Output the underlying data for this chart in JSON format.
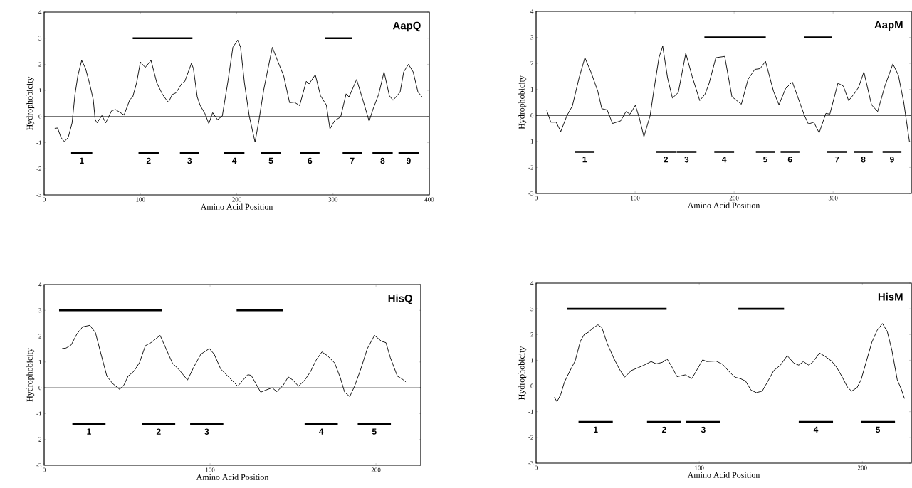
{
  "chart_data": [
    {
      "type": "line",
      "title": "AapQ",
      "xlabel": "Amino Acid Position",
      "ylabel": "Hydrophobicity",
      "xlim": [
        0,
        400
      ],
      "ylim": [
        -3,
        4
      ],
      "xticks": [
        0,
        100,
        200,
        300,
        400
      ],
      "yticks": [
        -3,
        -2,
        -1,
        0,
        1,
        2,
        3,
        4
      ],
      "ref_lines": [
        {
          "axis": "y",
          "value": 0,
          "color": "#000000"
        }
      ],
      "series": [
        {
          "color": "#000000",
          "x": [
            11,
            14,
            17.5,
            21,
            25,
            29,
            32,
            35,
            39,
            43,
            47,
            51,
            53,
            55,
            60,
            64,
            70,
            74,
            83,
            89,
            92,
            96,
            100,
            105,
            111,
            117,
            123,
            129,
            133,
            137,
            143,
            146,
            153,
            155,
            159,
            162,
            167,
            171,
            175,
            180,
            185,
            191,
            196,
            201,
            204,
            208,
            213,
            219,
            223,
            228,
            232,
            237,
            242.6,
            248.7,
            254.9,
            259.8,
            265.3,
            272.2,
            275.1,
            281.6,
            287,
            293.1,
            296.8,
            301.8,
            307.9,
            313.6,
            316.6,
            324.5,
            332.6,
            337.5,
            341.2,
            347.4,
            353,
            358.5,
            362.3,
            369.7,
            373.4,
            378.3,
            383.2,
            388.2,
            392.6
          ],
          "values": [
            -0.45,
            -0.44,
            -0.8,
            -0.96,
            -0.8,
            -0.25,
            0.84,
            1.56,
            2.15,
            1.84,
            1.29,
            0.65,
            -0.12,
            -0.24,
            0.04,
            -0.24,
            0.22,
            0.27,
            0.06,
            0.65,
            0.75,
            1.29,
            2.09,
            1.88,
            2.15,
            1.29,
            0.84,
            0.54,
            0.84,
            0.91,
            1.27,
            1.34,
            2.04,
            1.84,
            0.75,
            0.43,
            0.11,
            -0.27,
            0.15,
            -0.12,
            0.02,
            1.38,
            2.65,
            2.93,
            2.65,
            1.29,
            0.02,
            -0.98,
            -0.16,
            1.02,
            1.75,
            2.65,
            2.12,
            1.57,
            0.53,
            0.55,
            0.42,
            1.35,
            1.25,
            1.6,
            0.8,
            0.44,
            -0.47,
            -0.15,
            -0.02,
            0.87,
            0.75,
            1.42,
            0.44,
            -0.18,
            0.25,
            0.85,
            1.71,
            0.8,
            0.62,
            0.94,
            1.71,
            2.0,
            1.71,
            0.94,
            0.75
          ]
        },
        {
          "color": "#000000",
          "x": [
            92,
            154,
            null,
            292,
            320
          ],
          "values": [
            3,
            3,
            null,
            3,
            3
          ]
        },
        {
          "color": "#000000",
          "x": [
            28,
            50,
            null,
            98,
            119,
            null,
            141,
            161,
            null,
            187,
            208,
            null,
            225,
            246,
            null,
            266,
            286,
            null,
            310,
            330,
            null,
            341,
            362,
            null,
            368,
            389
          ],
          "values": [
            -1.4,
            -1.4,
            null,
            -1.4,
            -1.4,
            null,
            -1.4,
            -1.4,
            null,
            -1.4,
            -1.4,
            null,
            -1.4,
            -1.4,
            null,
            -1.4,
            -1.4,
            null,
            -1.4,
            -1.4,
            null,
            -1.4,
            -1.4,
            null,
            -1.4,
            -1.4
          ]
        }
      ],
      "annotations": [
        "1",
        "2",
        "3",
        "4",
        "5",
        "6",
        "7",
        "8",
        "9"
      ]
    },
    {
      "type": "line",
      "title": "AapM",
      "xlabel": "Amino Acid Position",
      "ylabel": "Hydrophobicity",
      "xlim": [
        0,
        379
      ],
      "ylim": [
        -3,
        4
      ],
      "xticks": [
        0,
        100,
        200,
        300
      ],
      "yticks": [
        -3,
        -2,
        -1,
        0,
        1,
        2,
        3,
        4
      ],
      "ref_lines": [
        {
          "axis": "y",
          "value": 0,
          "color": "#000000"
        }
      ],
      "series": [
        {
          "color": "#000000",
          "x": [
            10.8,
            14.9,
            20.3,
            24.9,
            31.2,
            36.6,
            43.4,
            49.3,
            55.6,
            62.3,
            66.4,
            71.8,
            77.2,
            85.4,
            90.8,
            94.9,
            100.3,
            104.3,
            108.9,
            115.2,
            119.2,
            124.1,
            127.9,
            132.8,
            137.7,
            143.6,
            151.2,
            157.7,
            165.3,
            170.7,
            174.8,
            181.6,
            190.5,
            197.8,
            207.3,
            214.1,
            220.9,
            226.3,
            231.7,
            239.8,
            245.3,
            252,
            258.8,
            264.2,
            271,
            275.1,
            280.5,
            285.9,
            292.7,
            296.7,
            304.9,
            310.3,
            315.7,
            321.1,
            325.7,
            331.1,
            338.8,
            345,
            352.3,
            360.4,
            365.9,
            371.3,
            377.2
          ],
          "values": [
            0.19,
            -0.26,
            -0.26,
            -0.62,
            0,
            0.36,
            1.44,
            2.22,
            1.65,
            0.93,
            0.26,
            0.21,
            -0.31,
            -0.21,
            0.15,
            0.05,
            0.39,
            -0.1,
            -0.82,
            0,
            1.03,
            2.22,
            2.66,
            1.44,
            0.67,
            0.88,
            2.39,
            1.49,
            0.57,
            0.82,
            1.24,
            2.22,
            2.27,
            0.72,
            0.43,
            1.39,
            1.77,
            1.8,
            2.08,
            0.93,
            0.41,
            1.03,
            1.29,
            0.72,
            0,
            -0.33,
            -0.26,
            -0.67,
            0.08,
            0.05,
            1.24,
            1.13,
            0.57,
            0.82,
            1.08,
            1.67,
            0.41,
            0.15,
            1.13,
            1.98,
            1.55,
            0.52,
            -1.03
          ]
        },
        {
          "color": "#000000",
          "x": [
            170,
            232,
            null,
            271,
            299
          ],
          "values": [
            3,
            3,
            null,
            3,
            3
          ]
        },
        {
          "color": "#000000",
          "x": [
            39,
            59,
            null,
            121,
            141,
            null,
            142,
            162,
            null,
            180,
            200,
            null,
            222,
            241,
            null,
            247,
            266,
            null,
            294,
            314,
            null,
            321,
            340,
            null,
            350,
            369
          ],
          "values": [
            -1.4,
            -1.4,
            null,
            -1.4,
            -1.4,
            null,
            -1.4,
            -1.4,
            null,
            -1.4,
            -1.4,
            null,
            -1.4,
            -1.4,
            null,
            -1.4,
            -1.4,
            null,
            -1.4,
            -1.4,
            null,
            -1.4,
            -1.4,
            null,
            -1.4,
            -1.4
          ]
        }
      ],
      "annotations": [
        "1",
        "2",
        "3",
        "4",
        "5",
        "6",
        "7",
        "8",
        "9"
      ]
    },
    {
      "type": "line",
      "title": "HisQ",
      "xlabel": "Amino Acid Position",
      "ylabel": "Hydrophobicity",
      "xlim": [
        0,
        227
      ],
      "ylim": [
        -3,
        4
      ],
      "xticks": [
        0,
        100,
        200
      ],
      "yticks": [
        -3,
        -2,
        -1,
        0,
        1,
        2,
        3,
        4
      ],
      "ref_lines": [
        {
          "axis": "y",
          "value": 0,
          "color": "#000000"
        }
      ],
      "series": [
        {
          "color": "#000000",
          "x": [
            10.8,
            13.2,
            16.3,
            19.7,
            23.2,
            27.5,
            30.9,
            34.3,
            37.8,
            41.2,
            45.5,
            48.1,
            50.6,
            54.1,
            57.5,
            61,
            64.4,
            69.9,
            73,
            77.3,
            81.6,
            86.4,
            90.1,
            94.4,
            99.6,
            102.5,
            106.4,
            110.7,
            116.7,
            122.7,
            124.8,
            130.5,
            134.8,
            137.4,
            140.3,
            144.2,
            147.1,
            149.9,
            153.3,
            157.1,
            160.5,
            163.9,
            167.4,
            170.8,
            175.1,
            178.5,
            181.1,
            184.2,
            187.1,
            190.6,
            194.8,
            199.1,
            203.4,
            206,
            208.6,
            212.9,
            215.8,
            218
          ],
          "values": [
            1.52,
            1.54,
            1.66,
            2.08,
            2.36,
            2.42,
            2.14,
            1.3,
            0.45,
            0.17,
            -0.06,
            0.11,
            0.45,
            0.64,
            0.98,
            1.63,
            1.75,
            2.03,
            1.58,
            0.96,
            0.68,
            0.3,
            0.79,
            1.3,
            1.52,
            1.3,
            0.73,
            0.45,
            0.06,
            0.51,
            0.48,
            -0.17,
            -0.06,
            0,
            -0.15,
            0.11,
            0.42,
            0.3,
            0.06,
            0.3,
            0.62,
            1.07,
            1.39,
            1.24,
            0.96,
            0.39,
            -0.17,
            -0.34,
            0.06,
            0.68,
            1.52,
            2.03,
            1.8,
            1.75,
            1.18,
            0.45,
            0.34,
            0.23
          ]
        },
        {
          "color": "#000000",
          "x": [
            9,
            71,
            null,
            116,
            144
          ],
          "values": [
            3,
            3,
            null,
            3,
            3
          ]
        },
        {
          "color": "#000000",
          "x": [
            17,
            37,
            null,
            59,
            79,
            null,
            88,
            108,
            null,
            157,
            177,
            null,
            189,
            209
          ],
          "values": [
            -1.4,
            -1.4,
            null,
            -1.4,
            -1.4,
            null,
            -1.4,
            -1.4,
            null,
            -1.4,
            -1.4,
            null,
            -1.4,
            -1.4
          ]
        }
      ],
      "annotations": [
        "1",
        "2",
        "3",
        "4",
        "5"
      ]
    },
    {
      "type": "line",
      "title": "HisM",
      "xlabel": "Amino Acid Position",
      "ylabel": "Hydrophobicity",
      "xlim": [
        0,
        230
      ],
      "ylim": [
        -3,
        4
      ],
      "xticks": [
        0,
        100,
        200
      ],
      "yticks": [
        -3,
        -2,
        -1,
        0,
        1,
        2,
        3,
        4
      ],
      "ref_lines": [
        {
          "axis": "y",
          "value": 0,
          "color": "#000000"
        }
      ],
      "series": [
        {
          "color": "#000000",
          "x": [
            11.2,
            12.8,
            15.1,
            17.3,
            20.6,
            23.9,
            27.2,
            29.6,
            32.1,
            34.6,
            37.9,
            40.3,
            43.6,
            47.7,
            51,
            54.3,
            58.4,
            62.5,
            66.2,
            70.5,
            73.7,
            77.4,
            80.3,
            83.1,
            86.4,
            91.4,
            95.5,
            97.9,
            102.1,
            104.5,
            110.3,
            114.4,
            117.7,
            121.8,
            125.1,
            128.4,
            131.7,
            135,
            138.6,
            140.7,
            145.7,
            149.8,
            153.9,
            158,
            161,
            163.8,
            167.1,
            169.5,
            173.7,
            177,
            181.1,
            184.4,
            187.7,
            190.9,
            193.4,
            196.7,
            199.2,
            202.5,
            205.8,
            209.1,
            212.3,
            215.3,
            218.1,
            221.4,
            223.9,
            225.8
          ],
          "values": [
            -0.44,
            -0.61,
            -0.33,
            0.14,
            0.57,
            0.97,
            1.75,
            2.01,
            2.09,
            2.24,
            2.38,
            2.27,
            1.65,
            1.07,
            0.66,
            0.34,
            0.6,
            0.71,
            0.81,
            0.95,
            0.86,
            0.92,
            1.05,
            0.76,
            0.36,
            0.43,
            0.29,
            0.55,
            1.02,
            0.95,
            0.97,
            0.84,
            0.6,
            0.34,
            0.29,
            0.19,
            -0.16,
            -0.26,
            -0.2,
            0.03,
            0.6,
            0.81,
            1.18,
            0.89,
            0.81,
            0.95,
            0.81,
            0.92,
            1.28,
            1.16,
            0.97,
            0.71,
            0.34,
            -0.05,
            -0.2,
            -0.07,
            0.24,
            0.97,
            1.7,
            2.17,
            2.43,
            2.11,
            1.39,
            0.24,
            -0.13,
            -0.49
          ]
        },
        {
          "color": "#000000",
          "x": [
            19,
            80,
            null,
            124,
            152
          ],
          "values": [
            3,
            3,
            null,
            3,
            3
          ]
        },
        {
          "color": "#000000",
          "x": [
            26,
            47,
            null,
            68,
            89,
            null,
            92,
            113,
            null,
            161,
            182,
            null,
            199,
            220
          ],
          "values": [
            -1.4,
            -1.4,
            null,
            -1.4,
            -1.4,
            null,
            -1.4,
            -1.4,
            null,
            -1.4,
            -1.4,
            null,
            -1.4,
            -1.4
          ]
        }
      ],
      "annotations": [
        "1",
        "2",
        "3",
        "4",
        "5"
      ]
    }
  ]
}
